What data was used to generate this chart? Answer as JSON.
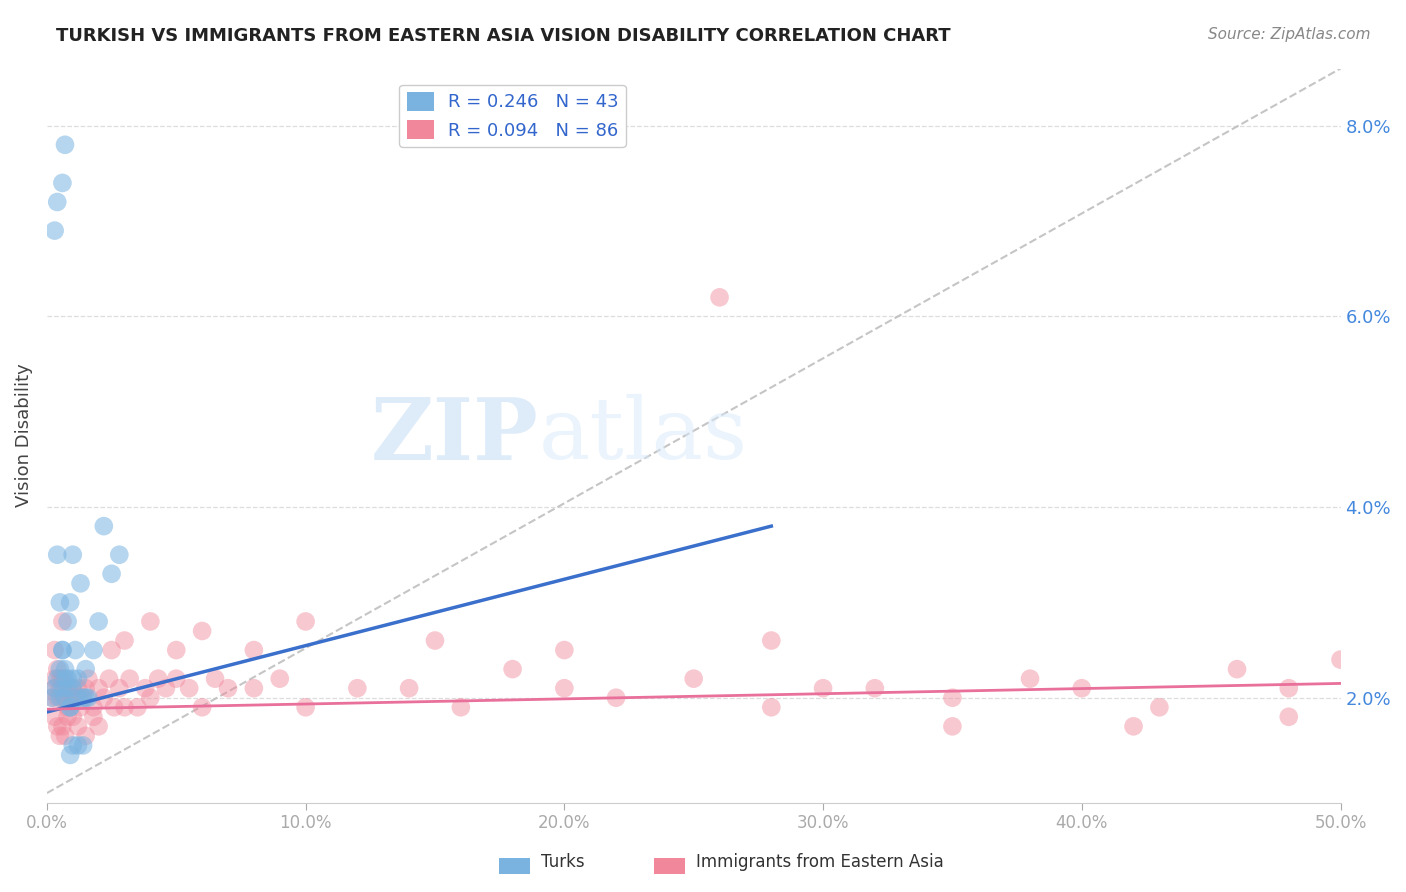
{
  "title": "TURKISH VS IMMIGRANTS FROM EASTERN ASIA VISION DISABILITY CORRELATION CHART",
  "source": "Source: ZipAtlas.com",
  "ylabel": "Vision Disability",
  "ytick_labels": [
    "2.0%",
    "4.0%",
    "6.0%",
    "8.0%"
  ],
  "ytick_values": [
    0.02,
    0.04,
    0.06,
    0.08
  ],
  "xlim": [
    0.0,
    0.5
  ],
  "ylim": [
    0.009,
    0.086
  ],
  "legend_entries": [
    {
      "label": "R = 0.246   N = 43",
      "color": "#7ab3e0"
    },
    {
      "label": "R = 0.094   N = 86",
      "color": "#f0879a"
    }
  ],
  "turks_scatter": {
    "color": "#7ab3e0",
    "alpha": 0.55,
    "size": 180,
    "x": [
      0.002,
      0.003,
      0.004,
      0.005,
      0.005,
      0.006,
      0.006,
      0.007,
      0.007,
      0.008,
      0.008,
      0.009,
      0.009,
      0.01,
      0.01,
      0.011,
      0.012,
      0.013,
      0.014,
      0.015,
      0.016,
      0.018,
      0.02,
      0.022,
      0.025,
      0.028,
      0.004,
      0.005,
      0.006,
      0.007,
      0.008,
      0.009,
      0.01,
      0.012,
      0.015,
      0.003,
      0.004,
      0.006,
      0.007,
      0.01,
      0.012,
      0.014,
      0.009
    ],
    "y": [
      0.02,
      0.021,
      0.022,
      0.02,
      0.023,
      0.021,
      0.025,
      0.02,
      0.023,
      0.022,
      0.028,
      0.019,
      0.03,
      0.022,
      0.035,
      0.025,
      0.022,
      0.032,
      0.02,
      0.023,
      0.02,
      0.025,
      0.028,
      0.038,
      0.033,
      0.035,
      0.035,
      0.03,
      0.025,
      0.022,
      0.021,
      0.019,
      0.021,
      0.02,
      0.02,
      0.069,
      0.072,
      0.074,
      0.078,
      0.015,
      0.015,
      0.015,
      0.014
    ]
  },
  "eastern_asia_scatter": {
    "color": "#f0879a",
    "alpha": 0.45,
    "size": 180,
    "x": [
      0.002,
      0.003,
      0.003,
      0.004,
      0.004,
      0.005,
      0.005,
      0.006,
      0.006,
      0.007,
      0.007,
      0.008,
      0.008,
      0.009,
      0.01,
      0.011,
      0.012,
      0.013,
      0.014,
      0.015,
      0.016,
      0.018,
      0.02,
      0.022,
      0.024,
      0.026,
      0.028,
      0.03,
      0.032,
      0.035,
      0.038,
      0.04,
      0.043,
      0.046,
      0.05,
      0.055,
      0.06,
      0.065,
      0.07,
      0.08,
      0.09,
      0.1,
      0.12,
      0.14,
      0.16,
      0.18,
      0.2,
      0.22,
      0.25,
      0.28,
      0.3,
      0.32,
      0.35,
      0.38,
      0.4,
      0.43,
      0.46,
      0.48,
      0.5,
      0.003,
      0.004,
      0.005,
      0.006,
      0.007,
      0.008,
      0.01,
      0.012,
      0.015,
      0.018,
      0.02,
      0.025,
      0.03,
      0.04,
      0.05,
      0.06,
      0.08,
      0.1,
      0.15,
      0.2,
      0.28,
      0.35,
      0.42,
      0.48,
      0.003,
      0.006,
      0.26
    ],
    "y": [
      0.02,
      0.021,
      0.022,
      0.02,
      0.023,
      0.021,
      0.022,
      0.02,
      0.022,
      0.02,
      0.021,
      0.019,
      0.021,
      0.02,
      0.021,
      0.02,
      0.021,
      0.019,
      0.02,
      0.021,
      0.022,
      0.019,
      0.021,
      0.02,
      0.022,
      0.019,
      0.021,
      0.019,
      0.022,
      0.019,
      0.021,
      0.02,
      0.022,
      0.021,
      0.022,
      0.021,
      0.019,
      0.022,
      0.021,
      0.021,
      0.022,
      0.019,
      0.021,
      0.021,
      0.019,
      0.023,
      0.021,
      0.02,
      0.022,
      0.019,
      0.021,
      0.021,
      0.02,
      0.022,
      0.021,
      0.019,
      0.023,
      0.021,
      0.024,
      0.018,
      0.017,
      0.016,
      0.017,
      0.016,
      0.018,
      0.018,
      0.017,
      0.016,
      0.018,
      0.017,
      0.025,
      0.026,
      0.028,
      0.025,
      0.027,
      0.025,
      0.028,
      0.026,
      0.025,
      0.026,
      0.017,
      0.017,
      0.018,
      0.025,
      0.028,
      0.062
    ]
  },
  "turks_trend": {
    "color": "#3a6fcc",
    "x_start": 0.0,
    "x_end": 0.28,
    "y_start": 0.0185,
    "y_end": 0.038,
    "linewidth": 2.5
  },
  "eastern_asia_trend": {
    "color": "#e8709a",
    "x_start": 0.0,
    "x_end": 0.5,
    "y_start": 0.0188,
    "y_end": 0.0215,
    "linewidth": 2.0
  },
  "dashed_line": {
    "color": "#bbbbbb",
    "x_start": 0.0,
    "x_end": 0.5,
    "y_start": 0.01,
    "y_end": 0.086,
    "linewidth": 1.5,
    "style": "--"
  },
  "watermark_zip": "ZIP",
  "watermark_atlas": "atlas",
  "background_color": "#ffffff",
  "grid_color": "#dddddd"
}
